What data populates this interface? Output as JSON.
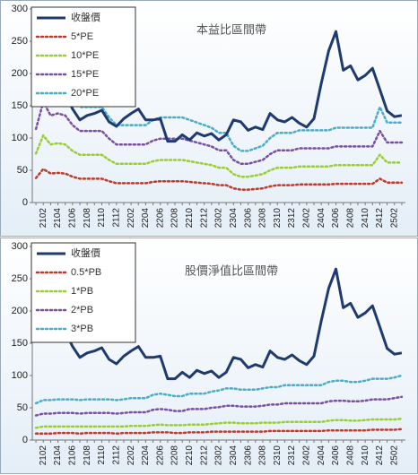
{
  "chart_data": [
    {
      "type": "line",
      "title": "本益比區間帶",
      "categories": [
        null,
        "2102",
        null,
        "2104",
        null,
        "2106",
        null,
        "2108",
        null,
        "2110",
        null,
        "2112",
        null,
        "2202",
        null,
        "2204",
        null,
        "2206",
        null,
        "2208",
        null,
        "2210",
        null,
        "2212",
        null,
        "2302",
        null,
        "2304",
        null,
        "2306",
        null,
        "2308",
        null,
        "2310",
        null,
        "2312",
        null,
        "2402",
        null,
        "2404",
        null,
        "2406",
        null,
        "2408",
        null,
        "2410",
        null,
        "2412",
        null,
        "2502",
        null
      ],
      "ylim": [
        0,
        300
      ],
      "yticks": [
        0,
        50,
        100,
        150,
        200,
        250,
        300
      ],
      "series": [
        {
          "name": "收盤價",
          "color": "#1f3a6e",
          "values": [
            175,
            157,
            155,
            170,
            168,
            145,
            128,
            135,
            138,
            143,
            125,
            118,
            130,
            138,
            145,
            128,
            128,
            130,
            95,
            95,
            105,
            97,
            108,
            103,
            107,
            97,
            105,
            128,
            125,
            112,
            117,
            113,
            138,
            128,
            125,
            132,
            123,
            117,
            130,
            185,
            235,
            265,
            205,
            212,
            190,
            197,
            208,
            175,
            142,
            133,
            135
          ]
        },
        {
          "name": "5*PE",
          "color": "#c0392b",
          "values": [
            38,
            52,
            45,
            46,
            45,
            40,
            37,
            37,
            37,
            37,
            33,
            30,
            30,
            30,
            30,
            30,
            32,
            33,
            33,
            33,
            33,
            32,
            31,
            30,
            29,
            27,
            27,
            22,
            20,
            20,
            21,
            22,
            25,
            27,
            27,
            27,
            28,
            28,
            28,
            28,
            28,
            29,
            29,
            29,
            29,
            29,
            29,
            37,
            31,
            31,
            31
          ]
        },
        {
          "name": "10*PE",
          "color": "#9acd32",
          "values": [
            76,
            104,
            90,
            92,
            90,
            80,
            74,
            74,
            74,
            74,
            66,
            60,
            60,
            60,
            60,
            60,
            64,
            66,
            66,
            66,
            66,
            64,
            62,
            60,
            58,
            54,
            54,
            44,
            40,
            40,
            42,
            44,
            50,
            54,
            54,
            54,
            56,
            56,
            56,
            56,
            56,
            58,
            58,
            58,
            58,
            58,
            58,
            74,
            62,
            62,
            62
          ]
        },
        {
          "name": "15*PE",
          "color": "#7a4fa0",
          "values": [
            114,
            156,
            135,
            138,
            135,
            120,
            111,
            111,
            111,
            111,
            99,
            90,
            90,
            90,
            90,
            90,
            96,
            99,
            99,
            99,
            99,
            96,
            93,
            90,
            87,
            81,
            81,
            66,
            60,
            60,
            63,
            66,
            75,
            81,
            81,
            81,
            84,
            84,
            84,
            84,
            84,
            87,
            87,
            87,
            87,
            87,
            87,
            111,
            93,
            93,
            93
          ]
        },
        {
          "name": "20*PE",
          "color": "#4bacc6",
          "values": [
            152,
            208,
            180,
            184,
            180,
            160,
            148,
            148,
            148,
            148,
            132,
            120,
            120,
            120,
            120,
            120,
            128,
            132,
            132,
            132,
            132,
            128,
            124,
            120,
            116,
            108,
            108,
            88,
            80,
            80,
            84,
            88,
            100,
            108,
            108,
            108,
            112,
            112,
            112,
            112,
            112,
            116,
            116,
            116,
            116,
            116,
            116,
            148,
            124,
            124,
            124
          ]
        }
      ]
    },
    {
      "type": "line",
      "title": "股價淨值比區間帶",
      "categories": [
        null,
        "2102",
        null,
        "2104",
        null,
        "2106",
        null,
        "2108",
        null,
        "2110",
        null,
        "2112",
        null,
        "2202",
        null,
        "2204",
        null,
        "2206",
        null,
        "2208",
        null,
        "2210",
        null,
        "2212",
        null,
        "2302",
        null,
        "2304",
        null,
        "2306",
        null,
        "2308",
        null,
        "2310",
        null,
        "2312",
        null,
        "2402",
        null,
        "2404",
        null,
        "2406",
        null,
        "2408",
        null,
        "2410",
        null,
        "2412",
        null,
        "2502",
        null
      ],
      "ylim": [
        0,
        300
      ],
      "yticks": [
        0,
        50,
        100,
        150,
        200,
        250,
        300
      ],
      "series": [
        {
          "name": "收盤價",
          "color": "#1f3a6e",
          "values": [
            175,
            157,
            155,
            170,
            168,
            145,
            128,
            135,
            138,
            143,
            125,
            118,
            130,
            138,
            145,
            128,
            128,
            130,
            95,
            95,
            105,
            97,
            108,
            103,
            107,
            97,
            105,
            128,
            125,
            112,
            117,
            113,
            138,
            128,
            125,
            132,
            123,
            117,
            130,
            185,
            235,
            265,
            205,
            212,
            190,
            197,
            208,
            175,
            142,
            133,
            135
          ]
        },
        {
          "name": "0.5*PB",
          "color": "#c0392b",
          "values": [
            10,
            10,
            10,
            11,
            11,
            11,
            10,
            11,
            11,
            11,
            11,
            10,
            11,
            11,
            11,
            11,
            12,
            12,
            12,
            11,
            11,
            12,
            12,
            12,
            13,
            13,
            13,
            13,
            13,
            13,
            13,
            13,
            14,
            14,
            14,
            14,
            14,
            14,
            14,
            14,
            15,
            15,
            15,
            15,
            15,
            15,
            16,
            16,
            16,
            16,
            17
          ]
        },
        {
          "name": "1*PB",
          "color": "#9acd32",
          "values": [
            19,
            21,
            21,
            21,
            21,
            21,
            21,
            21,
            21,
            21,
            21,
            21,
            21,
            22,
            22,
            22,
            23,
            24,
            23,
            23,
            23,
            24,
            24,
            24,
            25,
            26,
            27,
            27,
            26,
            26,
            26,
            27,
            27,
            27,
            28,
            28,
            28,
            28,
            28,
            28,
            30,
            31,
            31,
            30,
            30,
            31,
            32,
            32,
            32,
            32,
            33
          ]
        },
        {
          "name": "2*PB",
          "color": "#7a4fa0",
          "values": [
            38,
            41,
            41,
            42,
            42,
            42,
            41,
            42,
            42,
            42,
            42,
            41,
            42,
            43,
            43,
            43,
            47,
            48,
            47,
            45,
            45,
            48,
            48,
            48,
            50,
            51,
            53,
            53,
            52,
            52,
            52,
            53,
            55,
            55,
            57,
            57,
            57,
            57,
            57,
            57,
            60,
            61,
            61,
            60,
            60,
            61,
            63,
            63,
            63,
            65,
            67
          ]
        },
        {
          "name": "3*PB",
          "color": "#4bacc6",
          "values": [
            57,
            62,
            62,
            63,
            63,
            63,
            62,
            63,
            63,
            63,
            63,
            62,
            63,
            65,
            65,
            65,
            70,
            72,
            70,
            68,
            68,
            72,
            72,
            72,
            75,
            77,
            80,
            80,
            78,
            78,
            78,
            80,
            82,
            82,
            85,
            85,
            85,
            85,
            85,
            85,
            90,
            92,
            92,
            90,
            90,
            92,
            95,
            95,
            95,
            97,
            100
          ]
        }
      ]
    }
  ]
}
